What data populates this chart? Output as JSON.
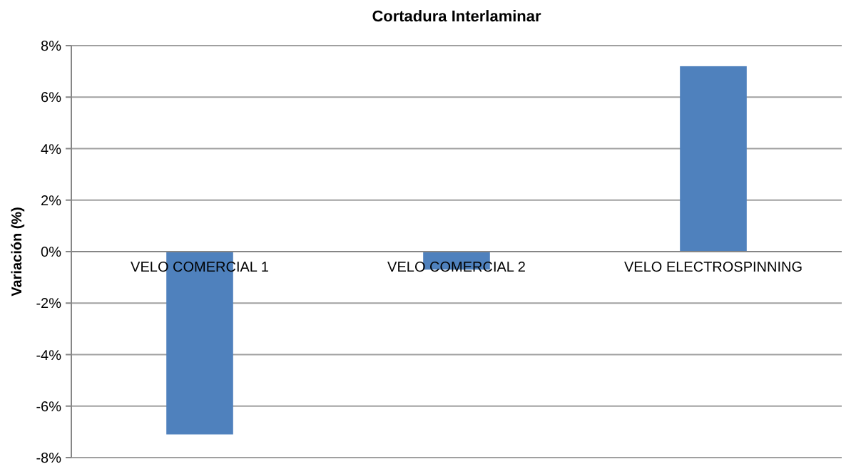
{
  "chart_data": {
    "type": "bar",
    "title": "Cortadura Interlaminar",
    "ylabel": "Variación (%)",
    "categories": [
      "VELO COMERCIAL 1",
      "VELO COMERCIAL 2",
      "VELO ELECTROSPINNING"
    ],
    "values": [
      -7.1,
      -0.7,
      7.2
    ],
    "color": "#4f81bd",
    "ylim": [
      -8,
      8
    ],
    "yticks": [
      {
        "value": -8,
        "label": "-8%"
      },
      {
        "value": -6,
        "label": "-6%"
      },
      {
        "value": -4,
        "label": "-4%"
      },
      {
        "value": -2,
        "label": "-2%"
      },
      {
        "value": 0,
        "label": "0%"
      },
      {
        "value": 2,
        "label": "2%"
      },
      {
        "value": 4,
        "label": "4%"
      },
      {
        "value": 6,
        "label": "6%"
      },
      {
        "value": 8,
        "label": "8%"
      }
    ],
    "grid": "y"
  }
}
